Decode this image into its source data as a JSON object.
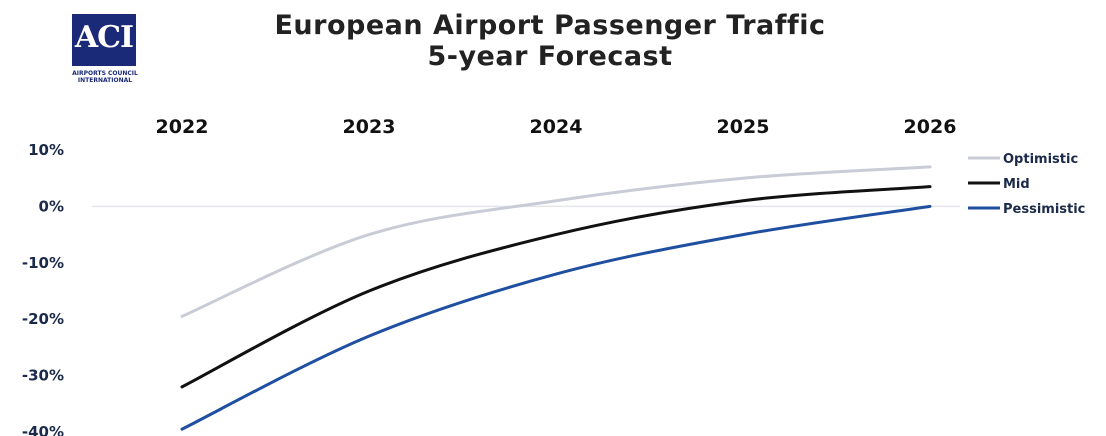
{
  "logo": {
    "letters": "ACI",
    "line1": "AIRPORTS COUNCIL",
    "line2": "INTERNATIONAL"
  },
  "chart_data": {
    "type": "line",
    "title": "European Airport Passenger Traffic",
    "subtitle": "5-year Forecast",
    "x": [
      "2022",
      "2023",
      "2024",
      "2025",
      "2026"
    ],
    "y_ticks": [
      "10%",
      "0%",
      "-10%",
      "-20%",
      "-30%",
      "-40%"
    ],
    "y_tick_values": [
      10,
      0,
      -10,
      -20,
      -30,
      -40
    ],
    "ylim": [
      -40,
      10
    ],
    "grid": false,
    "legend_position": "right",
    "series": [
      {
        "name": "Optimistic",
        "color": "#c9ccd6",
        "values": [
          -19.5,
          -5,
          1,
          5,
          7
        ]
      },
      {
        "name": "Mid",
        "color": "#111111",
        "values": [
          -32,
          -15,
          -5,
          1,
          3.5
        ]
      },
      {
        "name": "Pessimistic",
        "color": "#1f4fa0",
        "values": [
          -39.5,
          -23,
          -12,
          -5,
          0
        ]
      }
    ]
  }
}
